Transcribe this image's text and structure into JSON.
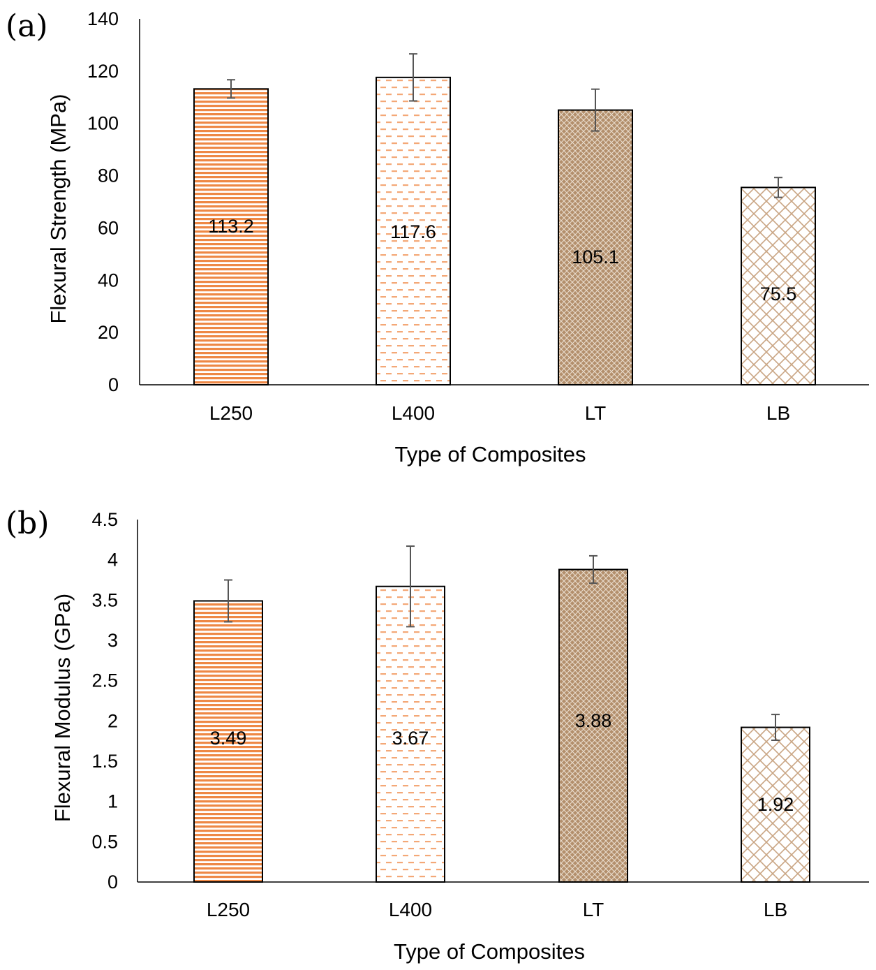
{
  "chart_data": [
    {
      "type": "bar",
      "panel_label": "(a)",
      "title": "",
      "xlabel": "Type of Composites",
      "ylabel": "Flexural Strength (MPa)",
      "ylim": [
        0,
        140
      ],
      "yticks": [
        0,
        20,
        40,
        60,
        80,
        100,
        120,
        140
      ],
      "ytick_labels": [
        "0",
        "20",
        "40",
        "60",
        "80",
        "100",
        "120",
        "140"
      ],
      "categories": [
        "L250",
        "L400",
        "LT",
        "LB"
      ],
      "values": [
        113.2,
        117.6,
        105.1,
        75.5
      ],
      "data_labels": [
        "113.2",
        "117.6",
        "105.1",
        "75.5"
      ],
      "errors": [
        3.5,
        9,
        8,
        3.8
      ],
      "patterns": [
        "horizontal",
        "dashed",
        "crosshatch",
        "diagonal-grid"
      ],
      "grid": false,
      "legend": "none"
    },
    {
      "type": "bar",
      "panel_label": "(b)",
      "title": "",
      "xlabel": "Type of Composites",
      "ylabel": "Flexural Modulus (GPa)",
      "ylim": [
        0,
        4.5
      ],
      "yticks": [
        0,
        0.5,
        1,
        1.5,
        2,
        2.5,
        3,
        3.5,
        4,
        4.5
      ],
      "ytick_labels": [
        "0",
        "0.5",
        "1",
        "1.5",
        "2",
        "2.5",
        "3",
        "3.5",
        "4",
        "4.5"
      ],
      "categories": [
        "L250",
        "L400",
        "LT",
        "LB"
      ],
      "values": [
        3.49,
        3.67,
        3.88,
        1.92
      ],
      "data_labels": [
        "3.49",
        "3.67",
        "3.88",
        "1.92"
      ],
      "errors": [
        0.26,
        0.5,
        0.17,
        0.16
      ],
      "patterns": [
        "horizontal",
        "dashed",
        "crosshatch",
        "diagonal-grid"
      ],
      "grid": false,
      "legend": "none"
    }
  ],
  "colors": {
    "orange": "#ee8845",
    "light_orange": "#f4a877",
    "tan": "#b38f6c",
    "light_tan": "#c9a583",
    "axis": "#000000",
    "error_bar": "#555555"
  }
}
